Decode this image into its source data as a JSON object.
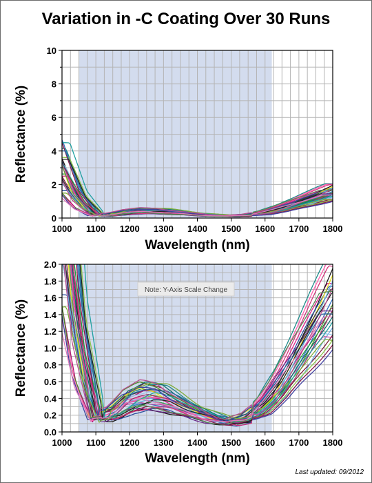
{
  "title": "Variation in -C Coating Over 30 Runs",
  "last_updated": "Last updated: 09/2012",
  "colors": {
    "band": "#d3dcee",
    "grid": "#b4b4b4",
    "series": [
      "#e0218a",
      "#b0126f",
      "#7a1f3a",
      "#1a1a1a",
      "#2f6fbf",
      "#6aa9e0",
      "#9fc3e8",
      "#1f8a8a",
      "#2b4f9e",
      "#1e9b3a",
      "#8bc34a",
      "#e6e01a",
      "#4a8a2a",
      "#6a2a8a",
      "#c24da0",
      "#ff5fb0",
      "#3a3a3a",
      "#0f6e6e",
      "#8a1a4a",
      "#5fb0d8",
      "#a0306a",
      "#306aa0",
      "#7fae3a",
      "#d0347a",
      "#222222",
      "#1fa0a0",
      "#4040a0",
      "#b84f8f",
      "#5a8a5a",
      "#e07ab8"
    ]
  },
  "chart_data": [
    {
      "type": "line",
      "xlabel": "Wavelength (nm)",
      "ylabel": "Reflectance (%)",
      "xlim": [
        1000,
        1800
      ],
      "ylim": [
        0,
        10
      ],
      "xticks": [
        1000,
        1100,
        1200,
        1300,
        1400,
        1500,
        1600,
        1700,
        1800
      ],
      "yticks": [
        0,
        2,
        4,
        6,
        8,
        10
      ],
      "highlight_band": [
        1050,
        1620
      ],
      "grid": true,
      "series_count": 30
    },
    {
      "type": "line",
      "xlabel": "Wavelength (nm)",
      "ylabel": "Reflectance (%)",
      "xlim": [
        1000,
        1800
      ],
      "ylim": [
        0,
        2.0
      ],
      "xticks": [
        1000,
        1100,
        1200,
        1300,
        1400,
        1500,
        1600,
        1700,
        1800
      ],
      "yticks": [
        0.0,
        0.2,
        0.4,
        0.6,
        0.8,
        1.0,
        1.2,
        1.4,
        1.6,
        1.8,
        2.0
      ],
      "yticklabels": [
        "0.0",
        "0.2",
        "0.4",
        "0.6",
        "0.8",
        "1.0",
        "1.2",
        "1.4",
        "1.6",
        "1.8",
        "2.0"
      ],
      "highlight_band": [
        1050,
        1620
      ],
      "grid": true,
      "annotation": "Note: Y-Axis Scale Change",
      "series_count": 30
    }
  ],
  "series_shape": {
    "x": [
      1000,
      1050,
      1100,
      1150,
      1200,
      1250,
      1300,
      1350,
      1400,
      1450,
      1500,
      1550,
      1600,
      1650,
      1700,
      1750,
      1800
    ],
    "base": [
      2.2,
      0.8,
      0.15,
      0.2,
      0.38,
      0.45,
      0.42,
      0.32,
      0.22,
      0.15,
      0.1,
      0.14,
      0.28,
      0.55,
      0.9,
      1.25,
      1.6
    ]
  }
}
